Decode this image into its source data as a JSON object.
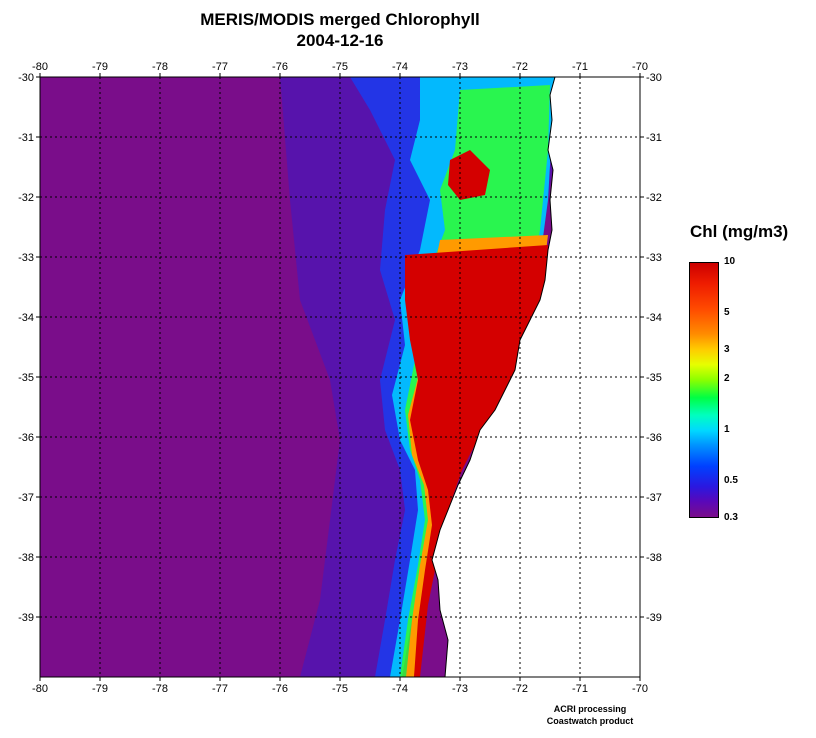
{
  "title": {
    "line1": "MERIS/MODIS merged Chlorophyll",
    "line2": "2004-12-16"
  },
  "map": {
    "lon_range": [
      -80,
      -70
    ],
    "lat_range": [
      -40,
      -30
    ],
    "lon_ticks": [
      "-80",
      "-79",
      "-78",
      "-77",
      "-76",
      "-75",
      "-74",
      "-73",
      "-72",
      "-71",
      "-70"
    ],
    "lat_ticks": [
      "-30",
      "-31",
      "-32",
      "-33",
      "-34",
      "-35",
      "-36",
      "-37",
      "-38",
      "-39"
    ],
    "grid": "dotted",
    "land_color": "#ffffff",
    "background_color": "#7a0d8a"
  },
  "legend": {
    "title": "Chl (mg/m3)",
    "labels": [
      "10",
      "5",
      "3",
      "2",
      "1",
      "0.5",
      "0.3"
    ],
    "scale": "log",
    "range": [
      0.3,
      10
    ]
  },
  "credits": {
    "line1": "ACRI processing",
    "line2": "Coastwatch product"
  }
}
